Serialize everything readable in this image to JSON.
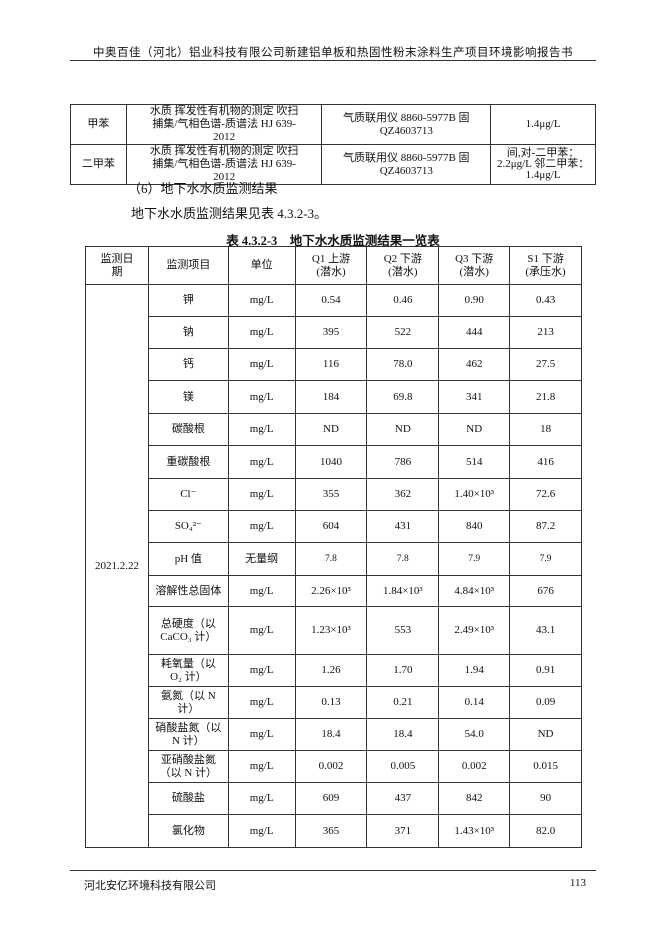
{
  "header": "中奥百佳（河北）铝业科技有限公司新建铝单板和热固性粉末涂料生产项目环境影响报告书",
  "footer": {
    "company": "河北安亿环境科技有限公司",
    "page": "113"
  },
  "method_table": {
    "rows": [
      {
        "item": "甲苯",
        "method": "水质 挥发性有机物的测定 吹扫捕集/气相色谱-质谱法 HJ 639-2012",
        "instrument": "气质联用仪 8860-5977B 固 QZ4603713",
        "limit": "1.4μg/L"
      },
      {
        "item": "二甲苯",
        "method": "水质 挥发性有机物的测定 吹扫捕集/气相色谱-质谱法 HJ 639-2012",
        "instrument": "气质联用仪 8860-5977B 固 QZ4603713",
        "limit": "间,对-二甲苯：2.2μg/L 邻二甲苯：1.4μg/L"
      }
    ]
  },
  "section_heading": "（6）地下水水质监测结果",
  "paragraph": "地下水水质监测结果见表 4.3.2-3。",
  "table_caption": "表 4.3.2-3　地下水水质监测结果一览表",
  "results_table": {
    "headers": [
      "监测日期",
      "监测项目",
      "单位",
      "Q1 上游 (潜水)",
      "Q2 下游 (潜水)",
      "Q3 下游 (潜水)",
      "S1 下游 (承压水)"
    ],
    "date": "2021.2.22",
    "rows": [
      {
        "item": "钾",
        "unit": "mg/L",
        "values": [
          "0.54",
          "0.46",
          "0.90",
          "0.43"
        ]
      },
      {
        "item": "钠",
        "unit": "mg/L",
        "values": [
          "395",
          "522",
          "444",
          "213"
        ]
      },
      {
        "item": "钙",
        "unit": "mg/L",
        "values": [
          "116",
          "78.0",
          "462",
          "27.5"
        ]
      },
      {
        "item": "镁",
        "unit": "mg/L",
        "values": [
          "184",
          "69.8",
          "341",
          "21.8"
        ]
      },
      {
        "item": "碳酸根",
        "unit": "mg/L",
        "values": [
          "ND",
          "ND",
          "ND",
          "18"
        ]
      },
      {
        "item": "重碳酸根",
        "unit": "mg/L",
        "values": [
          "1040",
          "786",
          "514",
          "416"
        ]
      },
      {
        "item": "Cl⁻",
        "unit": "mg/L",
        "values": [
          "355",
          "362",
          "1.40×10³",
          "72.6"
        ]
      },
      {
        "item": "SO₄²⁻",
        "unit": "mg/L",
        "values": [
          "604",
          "431",
          "840",
          "87.2"
        ]
      },
      {
        "item": "pH 值",
        "unit": "无量纲",
        "values": [
          "7.8",
          "7.8",
          "7.9",
          "7.9"
        ]
      },
      {
        "item": "溶解性总固体",
        "unit": "mg/L",
        "values": [
          "2.26×10³",
          "1.84×10³",
          "4.84×10³",
          "676"
        ]
      },
      {
        "item": "总硬度（以 CaCO₃ 计）",
        "unit": "mg/L",
        "values": [
          "1.23×10³",
          "553",
          "2.49×10³",
          "43.1"
        ]
      },
      {
        "item": "耗氧量（以 O₂ 计）",
        "unit": "mg/L",
        "values": [
          "1.26",
          "1.70",
          "1.94",
          "0.91"
        ]
      },
      {
        "item": "氨氮（以 N 计）",
        "unit": "mg/L",
        "values": [
          "0.13",
          "0.21",
          "0.14",
          "0.09"
        ]
      },
      {
        "item": "硝酸盐氮（以 N 计）",
        "unit": "mg/L",
        "values": [
          "18.4",
          "18.4",
          "54.0",
          "ND"
        ]
      },
      {
        "item": "亚硝酸盐氮（以 N 计）",
        "unit": "mg/L",
        "values": [
          "0.002",
          "0.005",
          "0.002",
          "0.015"
        ]
      },
      {
        "item": "硫酸盐",
        "unit": "mg/L",
        "values": [
          "609",
          "437",
          "842",
          "90"
        ]
      },
      {
        "item": "氯化物",
        "unit": "mg/L",
        "values": [
          "365",
          "371",
          "1.43×10³",
          "82.0"
        ]
      }
    ]
  }
}
